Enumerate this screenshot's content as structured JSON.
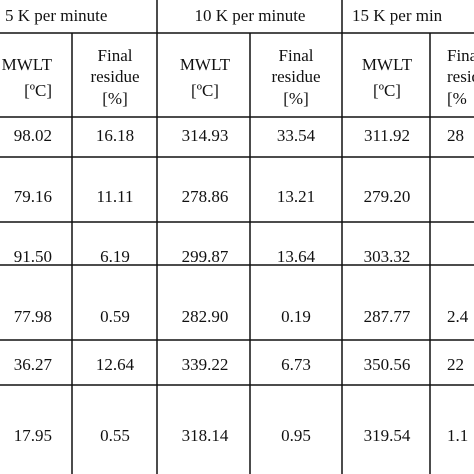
{
  "table": {
    "headers": [
      "5 K per minute",
      "10 K per minute",
      "15 K per min"
    ],
    "subheaders": [
      [
        "MWLT",
        "[ºC]"
      ],
      [
        "Final",
        "residue",
        "[%]"
      ],
      [
        "MWLT",
        "[ºC]"
      ],
      [
        "Final",
        "residue",
        "[%]"
      ],
      [
        "MWLT",
        "[ºC]"
      ],
      [
        "Final",
        "residu",
        "[%"
      ]
    ],
    "rows": [
      [
        "98.02",
        "16.18",
        "314.93",
        "33.54",
        "311.92",
        "28"
      ],
      [
        "79.16",
        "11.11",
        "278.86",
        "13.21",
        "279.20"
      ],
      [
        "91.50",
        "6.19",
        "299.87",
        "13.64",
        "303.32"
      ],
      [
        "77.98",
        "0.59",
        "282.90",
        "0.19",
        "287.77",
        "2.4"
      ],
      [
        "36.27",
        "12.64",
        "339.22",
        "6.73",
        "350.56",
        "22"
      ],
      [
        "17.95",
        "0.55",
        "318.14",
        "0.95",
        "319.54",
        "1.1"
      ]
    ]
  }
}
